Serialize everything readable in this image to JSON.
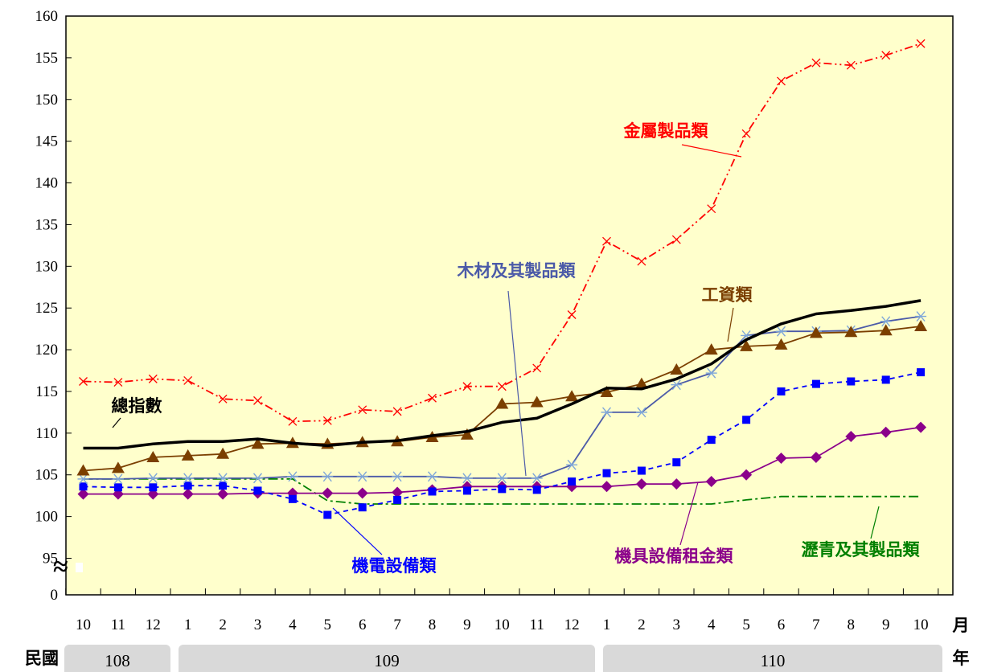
{
  "chart_data": {
    "type": "line",
    "yticks": [
      "160",
      "155",
      "150",
      "145",
      "140",
      "135",
      "130",
      "125",
      "120",
      "115",
      "110",
      "105",
      "100",
      "95",
      "0"
    ],
    "ylim": [
      95,
      160
    ],
    "y_axis_break": true,
    "categories": [
      "10",
      "11",
      "12",
      "1",
      "2",
      "3",
      "4",
      "5",
      "6",
      "7",
      "8",
      "9",
      "10",
      "11",
      "12",
      "1",
      "2",
      "3",
      "4",
      "5",
      "6",
      "7",
      "8",
      "9",
      "10"
    ],
    "x_unit_label": "月",
    "year_row_label": "民國",
    "year_unit_label": "年",
    "years": [
      {
        "label": "108",
        "from": 0,
        "to": 2
      },
      {
        "label": "109",
        "from": 3,
        "to": 14
      },
      {
        "label": "110",
        "from": 15,
        "to": 24
      }
    ],
    "grid": false,
    "background": "#ffffcc",
    "series": [
      {
        "key": "metal",
        "name": "金屬製品類",
        "color": "#ff0000",
        "dash": "10,4,2,4,2,4",
        "marker": "x",
        "values": [
          116.2,
          116.1,
          116.5,
          116.3,
          114.1,
          113.9,
          111.4,
          111.5,
          112.8,
          112.6,
          114.2,
          115.6,
          115.6,
          117.8,
          124.2,
          133.0,
          130.6,
          133.2,
          136.9,
          145.9,
          152.2,
          154.4,
          154.1,
          155.3,
          156.7
        ]
      },
      {
        "key": "total",
        "name": "總指數",
        "color": "#000000",
        "dash": "",
        "marker": "none",
        "values": [
          108.2,
          108.2,
          108.7,
          109.0,
          109.0,
          109.3,
          108.8,
          108.5,
          108.9,
          109.1,
          109.7,
          110.2,
          111.3,
          111.8,
          113.5,
          115.4,
          115.3,
          116.5,
          118.3,
          121.2,
          123.1,
          124.3,
          124.7,
          125.2,
          125.9
        ]
      },
      {
        "key": "wage",
        "name": "工資類",
        "color": "#7b3f00",
        "dash": "",
        "marker": "triangle",
        "values": [
          105.5,
          105.8,
          107.1,
          107.3,
          107.5,
          108.7,
          108.8,
          108.7,
          108.9,
          109.0,
          109.5,
          109.8,
          113.5,
          113.7,
          114.4,
          114.9,
          115.9,
          117.6,
          120.0,
          120.4,
          120.6,
          122.0,
          122.1,
          122.3,
          122.8
        ]
      },
      {
        "key": "wood",
        "name": "木材及其製品類",
        "color": "#4b5aa8",
        "dash": "",
        "marker": "asterisk",
        "values": [
          104.5,
          104.5,
          104.6,
          104.6,
          104.6,
          104.6,
          104.8,
          104.8,
          104.8,
          104.8,
          104.8,
          104.6,
          104.6,
          104.6,
          106.2,
          112.5,
          112.5,
          115.8,
          117.2,
          121.7,
          122.2,
          122.2,
          122.3,
          123.4,
          124.0
        ]
      },
      {
        "key": "electric",
        "name": "機電設備類",
        "color": "#0000ff",
        "dash": "6,5",
        "marker": "square",
        "values": [
          103.6,
          103.5,
          103.5,
          103.7,
          103.7,
          103.1,
          102.1,
          100.2,
          101.1,
          102.0,
          103.0,
          103.1,
          103.3,
          103.2,
          104.2,
          105.2,
          105.5,
          106.5,
          109.2,
          111.6,
          115.0,
          115.9,
          116.2,
          116.4,
          117.3
        ]
      },
      {
        "key": "rental",
        "name": "機具設備租金類",
        "color": "#8b008b",
        "dash": "",
        "marker": "diamond",
        "values": [
          102.7,
          102.7,
          102.7,
          102.7,
          102.7,
          102.8,
          102.8,
          102.8,
          102.8,
          102.9,
          103.2,
          103.6,
          103.6,
          103.6,
          103.6,
          103.6,
          103.9,
          103.9,
          104.2,
          105.0,
          107.0,
          107.1,
          109.6,
          110.1,
          110.7
        ]
      },
      {
        "key": "asphalt",
        "name": "瀝青及其製品類",
        "color": "#008000",
        "dash": "12,4,3,4",
        "marker": "none",
        "values": [
          104.5,
          104.5,
          104.5,
          104.5,
          104.5,
          104.5,
          104.5,
          101.9,
          101.5,
          101.5,
          101.5,
          101.5,
          101.5,
          101.5,
          101.5,
          101.5,
          101.5,
          101.5,
          101.5,
          102.0,
          102.4,
          102.4,
          102.4,
          102.4,
          102.4
        ]
      }
    ]
  }
}
